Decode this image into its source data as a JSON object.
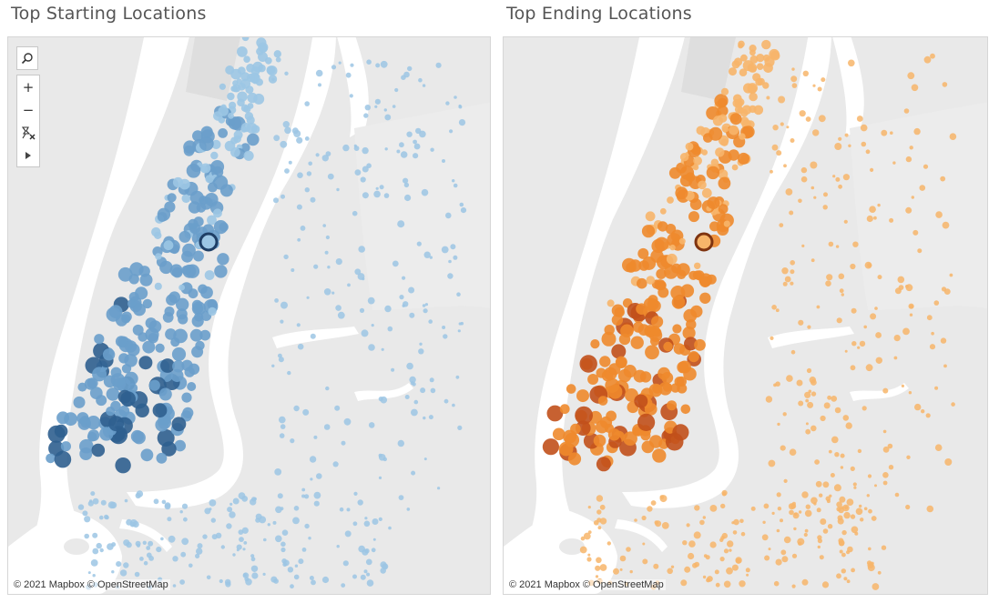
{
  "panels": [
    {
      "title": "Top Starting Locations",
      "attribution": "© 2021 Mapbox © OpenStreetMap",
      "color_light": "#9cc6e4",
      "color_mid": "#6a9fcb",
      "color_dark": "#2f5f8f",
      "outline": "#1f3f66"
    },
    {
      "title": "Top Ending Locations",
      "attribution": "© 2021 Mapbox © OpenStreetMap",
      "color_light": "#f7b56a",
      "color_mid": "#ee8a2c",
      "color_dark": "#c1501b",
      "outline": "#7f3410"
    }
  ],
  "toolbar": {
    "search_icon": "magnifier-icon",
    "zoom_in_label": "+",
    "zoom_out_label": "−",
    "reset_icon": "pin-reset-icon",
    "play_icon": "play-icon"
  },
  "colors": {
    "land": "#e9e9e9",
    "water": "#ffffff",
    "park": "#dedede"
  }
}
